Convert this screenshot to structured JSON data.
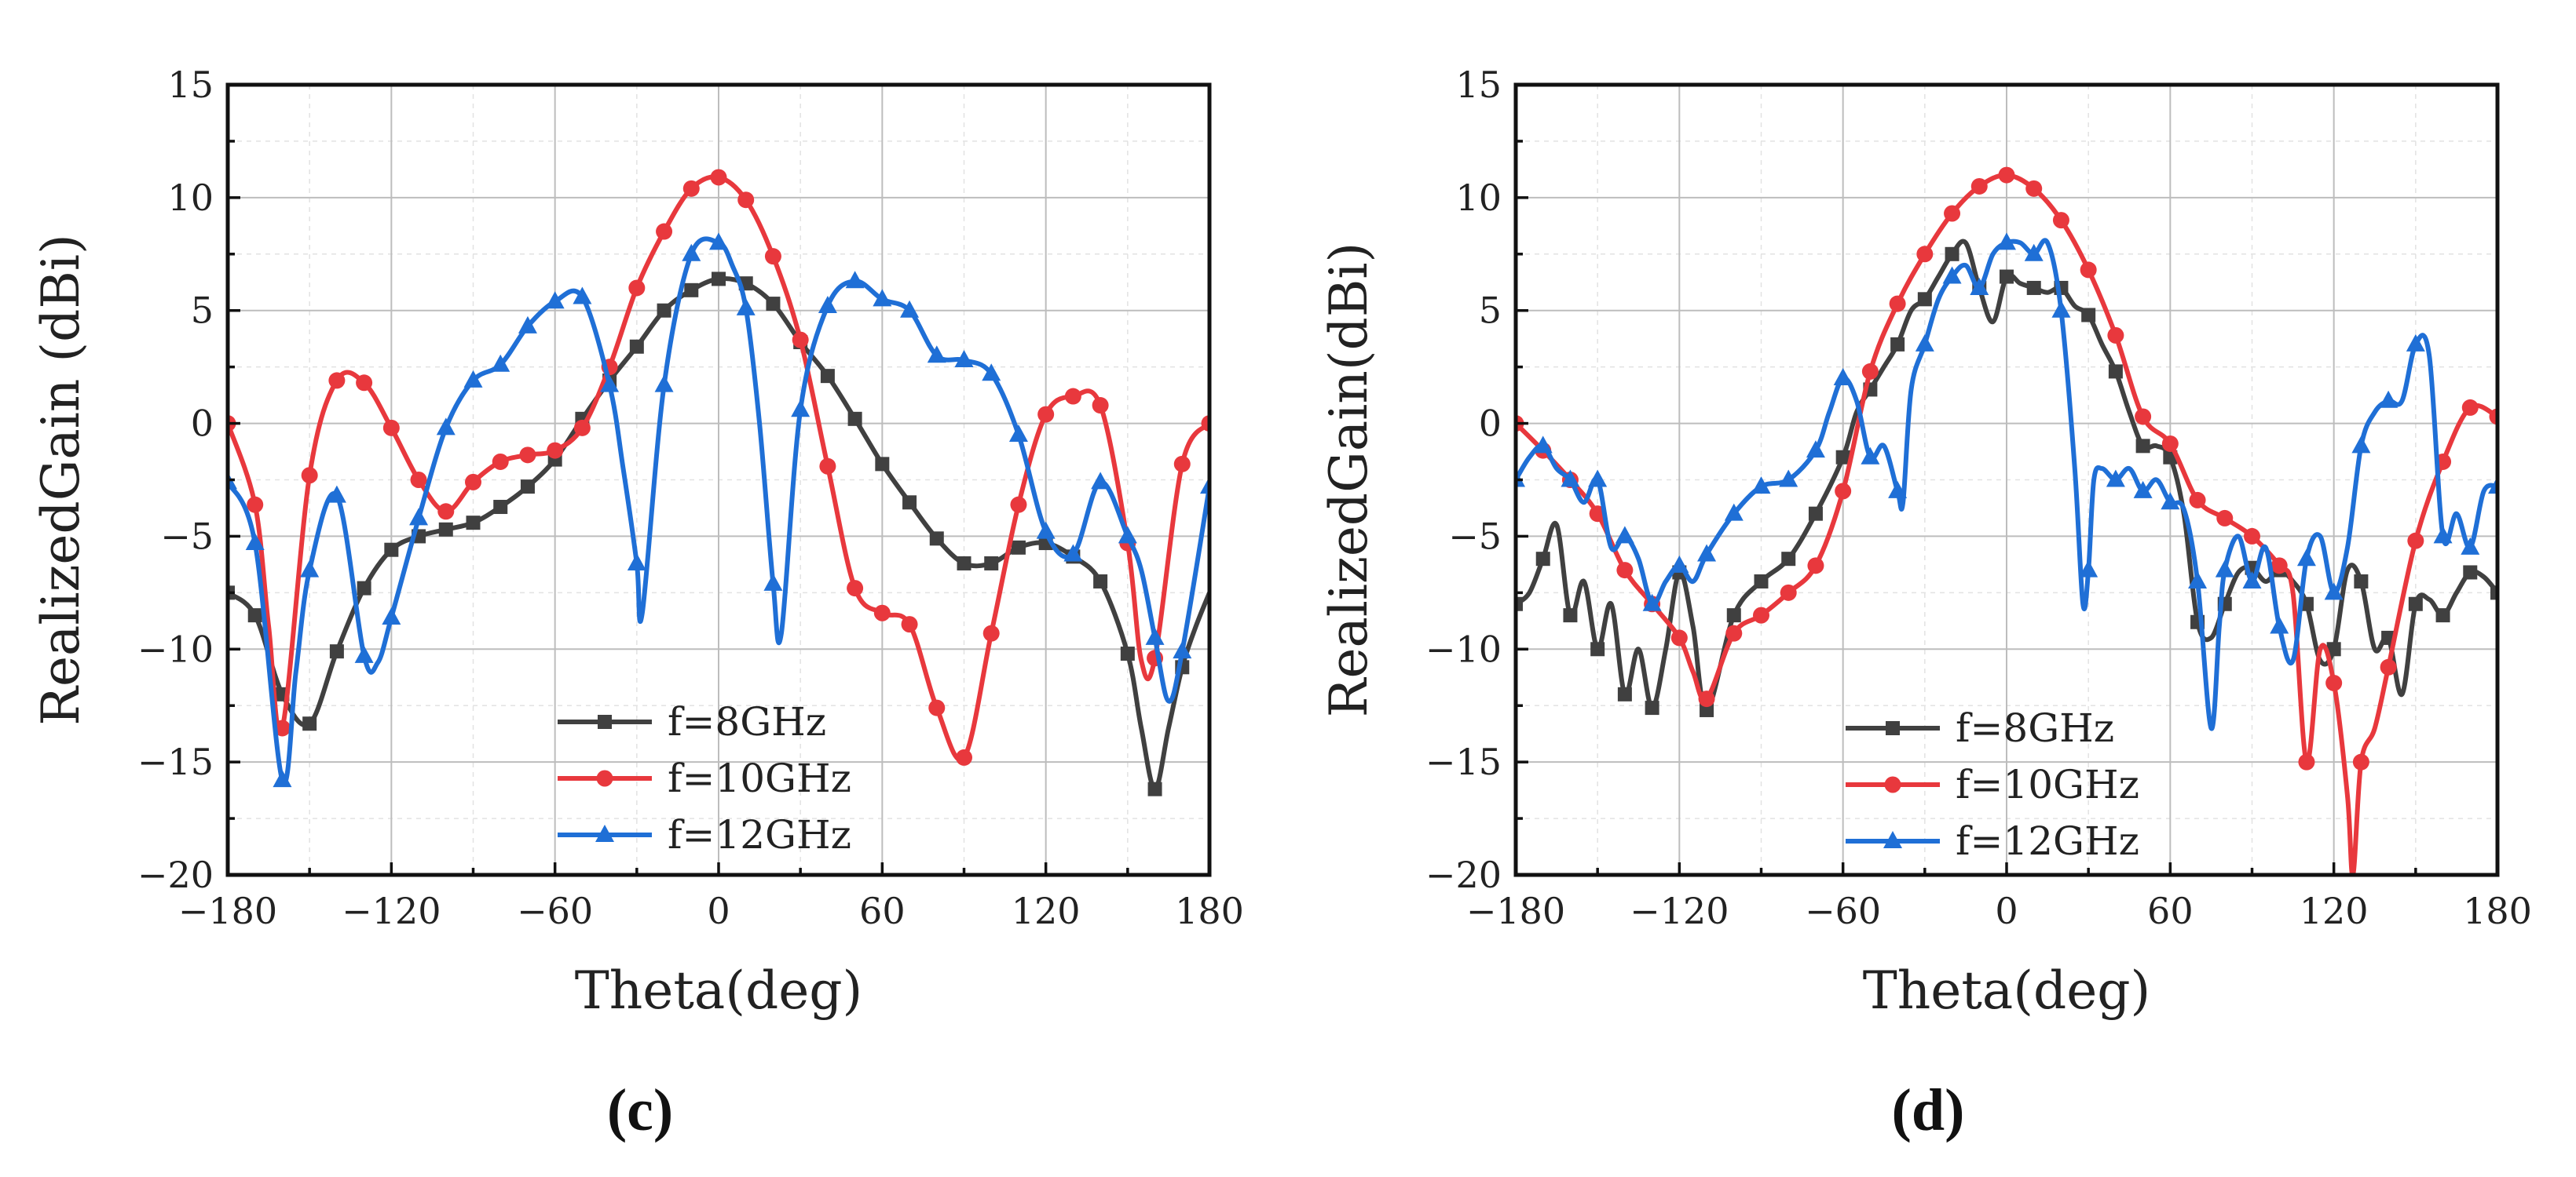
{
  "chart_data": [
    {
      "type": "line",
      "panel_label": "(c)",
      "xlabel": "Theta(deg)",
      "ylabel": "RealizedGain (dBi)",
      "xlim": [
        -180,
        180
      ],
      "ylim": [
        -20,
        15
      ],
      "xticks": [
        -180,
        -120,
        -60,
        0,
        60,
        120,
        180
      ],
      "yticks": [
        -20,
        -15,
        -10,
        -5,
        0,
        5,
        10,
        15
      ],
      "xtick_labels": [
        "−180",
        "−120",
        "−60",
        "0",
        "60",
        "120",
        "180"
      ],
      "ytick_labels": [
        "−20",
        "−15",
        "−10",
        "−5",
        "0",
        "5",
        "10",
        "15"
      ],
      "grid": true,
      "legend_position": "bottom-center",
      "series": [
        {
          "name": "f=8GHz",
          "color": "#404040",
          "marker": "square",
          "x": [
            -180,
            -170,
            -160,
            -150,
            -140,
            -130,
            -120,
            -110,
            -100,
            -90,
            -80,
            -70,
            -60,
            -50,
            -40,
            -30,
            -20,
            -10,
            0,
            10,
            20,
            30,
            40,
            50,
            60,
            70,
            80,
            90,
            100,
            110,
            120,
            130,
            140,
            150,
            155,
            160,
            165,
            170,
            175,
            180
          ],
          "y": [
            -7.5,
            -8.5,
            -12,
            -13.3,
            -10.1,
            -7.3,
            -5.6,
            -5.0,
            -4.7,
            -4.4,
            -3.7,
            -2.8,
            -1.6,
            0.2,
            1.9,
            3.4,
            5.0,
            5.9,
            6.4,
            6.2,
            5.3,
            3.6,
            2.1,
            0.2,
            -1.8,
            -3.5,
            -5.1,
            -6.2,
            -6.2,
            -5.5,
            -5.3,
            -5.9,
            -7.0,
            -10.2,
            -13.5,
            -16.2,
            -13.5,
            -10.8,
            -9.0,
            -7.5
          ],
          "marker_x": [
            -180,
            -170,
            -160,
            -150,
            -140,
            -130,
            -120,
            -110,
            -100,
            -90,
            -80,
            -70,
            -60,
            -50,
            -40,
            -30,
            -20,
            -10,
            0,
            10,
            20,
            30,
            40,
            50,
            60,
            70,
            80,
            90,
            100,
            110,
            120,
            130,
            140,
            150,
            160,
            170
          ]
        },
        {
          "name": "f=10GHz",
          "color": "#e8383d",
          "marker": "circle",
          "x": [
            -180,
            -170,
            -165,
            -160,
            -150,
            -140,
            -130,
            -120,
            -110,
            -100,
            -90,
            -80,
            -70,
            -60,
            -50,
            -40,
            -30,
            -20,
            -10,
            0,
            10,
            20,
            30,
            40,
            50,
            60,
            70,
            80,
            90,
            100,
            110,
            120,
            130,
            140,
            150,
            155,
            160,
            170,
            180
          ],
          "y": [
            0.0,
            -3.6,
            -9.0,
            -13.5,
            -2.3,
            1.9,
            1.8,
            -0.2,
            -2.5,
            -3.9,
            -2.6,
            -1.7,
            -1.4,
            -1.2,
            -0.2,
            2.5,
            6.0,
            8.5,
            10.4,
            10.9,
            9.9,
            7.4,
            3.7,
            -1.9,
            -7.3,
            -8.4,
            -8.9,
            -12.6,
            -14.8,
            -9.3,
            -3.6,
            0.4,
            1.2,
            0.8,
            -5.3,
            -10.5,
            -10.4,
            -1.8,
            0.0
          ],
          "marker_x": [
            -180,
            -170,
            -160,
            -150,
            -140,
            -130,
            -120,
            -110,
            -100,
            -90,
            -80,
            -70,
            -60,
            -50,
            -40,
            -30,
            -20,
            -10,
            0,
            10,
            20,
            30,
            40,
            50,
            60,
            70,
            80,
            90,
            100,
            110,
            120,
            130,
            140,
            150,
            160,
            170,
            180
          ]
        },
        {
          "name": "f=12GHz",
          "color": "#1f6fd6",
          "marker": "triangle",
          "x": [
            -180,
            -170,
            -160,
            -155,
            -150,
            -140,
            -130,
            -125,
            -120,
            -110,
            -100,
            -90,
            -80,
            -70,
            -60,
            -50,
            -40,
            -35,
            -30,
            -28,
            -20,
            -10,
            0,
            5,
            10,
            15,
            20,
            23,
            30,
            40,
            50,
            60,
            70,
            80,
            90,
            100,
            110,
            120,
            130,
            140,
            150,
            155,
            160,
            165,
            170,
            180
          ],
          "y": [
            -2.6,
            -5.3,
            -15.8,
            -11.0,
            -6.5,
            -3.2,
            -10.3,
            -10.6,
            -8.6,
            -4.2,
            -0.2,
            1.9,
            2.6,
            4.3,
            5.4,
            5.6,
            1.7,
            -2.0,
            -6.2,
            -8.4,
            1.7,
            7.5,
            8.0,
            7.0,
            5.1,
            0.0,
            -7.1,
            -9.3,
            0.6,
            5.2,
            6.3,
            5.5,
            5.0,
            3.0,
            2.8,
            2.2,
            -0.5,
            -4.8,
            -5.8,
            -2.6,
            -5.0,
            -6.5,
            -9.5,
            -12.3,
            -10.1,
            -2.8
          ],
          "marker_x": [
            -180,
            -170,
            -160,
            -150,
            -140,
            -130,
            -120,
            -110,
            -100,
            -90,
            -80,
            -70,
            -60,
            -50,
            -40,
            -30,
            -20,
            -10,
            0,
            10,
            20,
            30,
            40,
            50,
            60,
            70,
            80,
            90,
            100,
            110,
            120,
            130,
            140,
            150,
            160,
            170,
            180
          ]
        }
      ]
    },
    {
      "type": "line",
      "panel_label": "(d)",
      "xlabel": "Theta(deg)",
      "ylabel": "RealizedGain(dBi)",
      "xlim": [
        -180,
        180
      ],
      "ylim": [
        -20,
        15
      ],
      "xticks": [
        -180,
        -120,
        -60,
        0,
        60,
        120,
        180
      ],
      "yticks": [
        -20,
        -15,
        -10,
        -5,
        0,
        5,
        10,
        15
      ],
      "xtick_labels": [
        "−180",
        "−120",
        "−60",
        "0",
        "60",
        "120",
        "180"
      ],
      "ytick_labels": [
        "−20",
        "−15",
        "−10",
        "−5",
        "0",
        "5",
        "10",
        "15"
      ],
      "grid": true,
      "legend_position": "bottom-center",
      "series": [
        {
          "name": "f=8GHz",
          "color": "#404040",
          "marker": "square",
          "x": [
            -180,
            -175,
            -170,
            -165,
            -160,
            -155,
            -150,
            -145,
            -140,
            -135,
            -130,
            -125,
            -120,
            -115,
            -110,
            -100,
            -90,
            -80,
            -70,
            -60,
            -55,
            -50,
            -45,
            -40,
            -35,
            -30,
            -25,
            -20,
            -15,
            -10,
            -5,
            0,
            5,
            10,
            15,
            20,
            25,
            30,
            35,
            40,
            45,
            50,
            55,
            60,
            65,
            70,
            75,
            80,
            85,
            90,
            95,
            100,
            105,
            110,
            115,
            120,
            125,
            130,
            135,
            140,
            145,
            150,
            155,
            160,
            165,
            170,
            175,
            180
          ],
          "y": [
            -8,
            -7.5,
            -6,
            -4.5,
            -8.5,
            -7,
            -10,
            -8,
            -12,
            -10,
            -12.6,
            -10,
            -6.6,
            -9,
            -12.7,
            -8.5,
            -7,
            -6,
            -4,
            -1.5,
            0.5,
            1.5,
            2.5,
            3.5,
            5,
            5.5,
            6.5,
            7.5,
            8.0,
            6,
            4.5,
            6.5,
            6.2,
            6.0,
            5.8,
            6.0,
            5.2,
            4.8,
            3.5,
            2.3,
            0.5,
            -1,
            -1.0,
            -1.5,
            -4,
            -8.8,
            -9.5,
            -8,
            -6.6,
            -6.4,
            -7,
            -6.5,
            -7,
            -8,
            -10.5,
            -10,
            -6.5,
            -7,
            -10,
            -9.5,
            -12,
            -8,
            -7.8,
            -8.5,
            -7.5,
            -6.6,
            -6.8,
            -7.5
          ],
          "marker_x": [
            -180,
            -170,
            -160,
            -150,
            -140,
            -130,
            -120,
            -110,
            -100,
            -90,
            -80,
            -70,
            -60,
            -50,
            -40,
            -30,
            -20,
            -10,
            0,
            10,
            20,
            30,
            40,
            50,
            60,
            70,
            80,
            90,
            100,
            110,
            120,
            130,
            140,
            150,
            160,
            170,
            180
          ]
        },
        {
          "name": "f=10GHz",
          "color": "#e8383d",
          "marker": "circle",
          "x": [
            -180,
            -170,
            -160,
            -150,
            -140,
            -130,
            -120,
            -115,
            -110,
            -100,
            -90,
            -80,
            -70,
            -60,
            -50,
            -40,
            -30,
            -20,
            -10,
            0,
            10,
            20,
            30,
            40,
            50,
            60,
            70,
            80,
            90,
            100,
            105,
            110,
            115,
            120,
            125,
            127,
            130,
            135,
            140,
            150,
            160,
            170,
            180
          ],
          "y": [
            0,
            -1.2,
            -2.5,
            -4.0,
            -6.5,
            -8.0,
            -9.5,
            -11,
            -12.2,
            -9.3,
            -8.5,
            -7.5,
            -6.3,
            -3.0,
            2.3,
            5.3,
            7.5,
            9.3,
            10.5,
            11.0,
            10.4,
            9.0,
            6.8,
            3.9,
            0.3,
            -0.9,
            -3.4,
            -4.2,
            -5.0,
            -6.3,
            -7.5,
            -15.0,
            -10.0,
            -11.5,
            -16.5,
            -20,
            -15.0,
            -13.5,
            -10.8,
            -5.2,
            -1.7,
            0.7,
            0.3
          ],
          "marker_x": [
            -180,
            -170,
            -160,
            -150,
            -140,
            -130,
            -120,
            -110,
            -100,
            -90,
            -80,
            -70,
            -60,
            -50,
            -40,
            -30,
            -20,
            -10,
            0,
            10,
            20,
            30,
            40,
            50,
            60,
            70,
            80,
            90,
            100,
            110,
            120,
            130,
            140,
            150,
            160,
            170,
            180
          ]
        },
        {
          "name": "f=12GHz",
          "color": "#1f6fd6",
          "marker": "triangle",
          "x": [
            -180,
            -175,
            -170,
            -165,
            -160,
            -155,
            -150,
            -145,
            -140,
            -135,
            -130,
            -125,
            -120,
            -115,
            -110,
            -100,
            -90,
            -80,
            -70,
            -65,
            -60,
            -55,
            -50,
            -45,
            -40,
            -38,
            -35,
            -30,
            -25,
            -20,
            -15,
            -10,
            -5,
            0,
            5,
            10,
            15,
            20,
            25,
            28,
            30,
            32,
            35,
            40,
            45,
            50,
            55,
            60,
            65,
            70,
            75,
            78,
            80,
            85,
            90,
            95,
            100,
            105,
            110,
            115,
            120,
            125,
            130,
            135,
            140,
            145,
            150,
            155,
            160,
            165,
            170,
            175,
            180
          ],
          "y": [
            -2.5,
            -1.5,
            -1.0,
            -2.0,
            -2.5,
            -3.5,
            -2.5,
            -5.5,
            -5.0,
            -6.0,
            -8.0,
            -7.0,
            -6.3,
            -7.0,
            -5.8,
            -4.0,
            -2.8,
            -2.5,
            -1.2,
            0.5,
            2.0,
            1.0,
            -1.5,
            -1.0,
            -3.0,
            -3.5,
            1.5,
            3.5,
            5.5,
            6.5,
            7.0,
            6.0,
            7.5,
            8.0,
            8.0,
            7.5,
            8.0,
            5.0,
            -2.0,
            -8.0,
            -6.5,
            -2.5,
            -2.0,
            -2.5,
            -2.0,
            -3.0,
            -2.5,
            -3.5,
            -3.8,
            -7.0,
            -13.5,
            -9.0,
            -6.5,
            -5.0,
            -7.0,
            -5.5,
            -9.0,
            -10.5,
            -6.0,
            -5.0,
            -7.5,
            -5.5,
            -1.0,
            0.5,
            1.0,
            1.0,
            3.5,
            3.0,
            -5.0,
            -4.0,
            -5.5,
            -3.0,
            -2.8
          ],
          "marker_x": [
            -180,
            -170,
            -160,
            -150,
            -140,
            -130,
            -120,
            -110,
            -100,
            -90,
            -80,
            -70,
            -60,
            -50,
            -40,
            -30,
            -20,
            -10,
            0,
            10,
            20,
            30,
            40,
            50,
            60,
            70,
            80,
            90,
            100,
            110,
            120,
            130,
            140,
            150,
            160,
            170,
            180
          ]
        }
      ]
    }
  ]
}
